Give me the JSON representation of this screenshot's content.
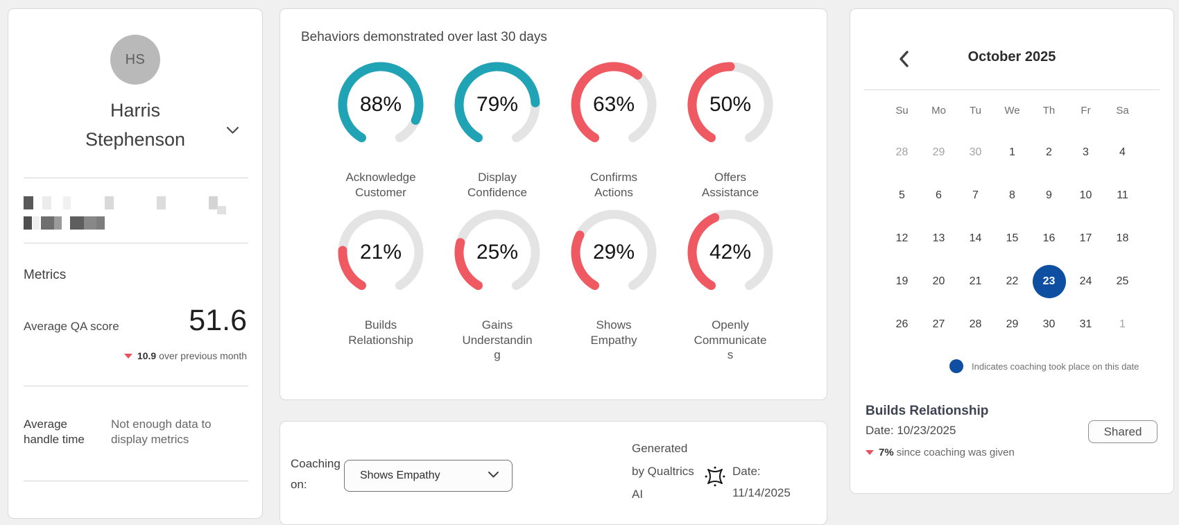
{
  "colors": {
    "teal": "#1fa3b5",
    "red": "#ef5a62",
    "track": "#e4e4e4",
    "blue": "#0e4fa2",
    "delta_red": "#e8505f"
  },
  "profile": {
    "initials": "HS",
    "name": "Harris Stephenson",
    "metrics_title": "Metrics",
    "qa_label": "Average QA score",
    "qa_value": "51.6",
    "qa_delta": "10.9",
    "qa_delta_suffix": "over previous month",
    "aht_label": "Average handle time",
    "aht_value": "Not enough data to display metrics"
  },
  "behaviors": {
    "title": "Behaviors demonstrated over last 30 days",
    "items": [
      {
        "pct": 88,
        "pct_text": "88%",
        "label": "Acknowledge\nCustomer",
        "color": "teal"
      },
      {
        "pct": 79,
        "pct_text": "79%",
        "label": "Display\nConfidence",
        "color": "teal"
      },
      {
        "pct": 63,
        "pct_text": "63%",
        "label": "Confirms\nActions",
        "color": "red"
      },
      {
        "pct": 50,
        "pct_text": "50%",
        "label": "Offers\nAssistance",
        "color": "red"
      },
      {
        "pct": 21,
        "pct_text": "21%",
        "label": "Builds\nRelationship",
        "color": "red"
      },
      {
        "pct": 25,
        "pct_text": "25%",
        "label": "Gains\nUnderstandin\ng",
        "color": "red"
      },
      {
        "pct": 29,
        "pct_text": "29%",
        "label": "Shows\nEmpathy",
        "color": "red"
      },
      {
        "pct": 42,
        "pct_text": "42%",
        "label": "Openly\nCommunicate\ns",
        "color": "red"
      }
    ]
  },
  "chart_data": {
    "type": "donut-gauges",
    "title": "Behaviors demonstrated over last 30 days",
    "categories": [
      "Acknowledge Customer",
      "Display Confidence",
      "Confirms Actions",
      "Offers Assistance",
      "Builds Relationship",
      "Gains Understanding",
      "Shows Empathy",
      "Openly Communicates"
    ],
    "values": [
      88,
      79,
      63,
      50,
      21,
      25,
      29,
      42
    ],
    "colors": [
      "#1fa3b5",
      "#1fa3b5",
      "#ef5a62",
      "#ef5a62",
      "#ef5a62",
      "#ef5a62",
      "#ef5a62",
      "#ef5a62"
    ]
  },
  "coaching": {
    "label": "Coaching on:",
    "select_value": "Shows Empathy",
    "generated_text": "Generated by Qualtrics AI",
    "date_text": "Date: 11/14/2025"
  },
  "calendar": {
    "title": "October 2025",
    "day_headers": [
      "Su",
      "Mo",
      "Tu",
      "We",
      "Th",
      "Fr",
      "Sa"
    ],
    "weeks": [
      [
        {
          "d": 28,
          "m": 1
        },
        {
          "d": 29,
          "m": 1
        },
        {
          "d": 30,
          "m": 1
        },
        {
          "d": 1
        },
        {
          "d": 2
        },
        {
          "d": 3
        },
        {
          "d": 4
        }
      ],
      [
        {
          "d": 5
        },
        {
          "d": 6
        },
        {
          "d": 7
        },
        {
          "d": 8
        },
        {
          "d": 9
        },
        {
          "d": 10
        },
        {
          "d": 11
        }
      ],
      [
        {
          "d": 12
        },
        {
          "d": 13
        },
        {
          "d": 14
        },
        {
          "d": 15
        },
        {
          "d": 16
        },
        {
          "d": 17
        },
        {
          "d": 18
        }
      ],
      [
        {
          "d": 19
        },
        {
          "d": 20
        },
        {
          "d": 21
        },
        {
          "d": 22
        },
        {
          "d": 23,
          "sel": 1
        },
        {
          "d": 24
        },
        {
          "d": 25
        }
      ],
      [
        {
          "d": 26
        },
        {
          "d": 27
        },
        {
          "d": 28
        },
        {
          "d": 29
        },
        {
          "d": 30
        },
        {
          "d": 31
        },
        {
          "d": 1,
          "m": 1
        }
      ]
    ],
    "legend_text": "Indicates coaching took place on this date",
    "detail_title": "Builds Relationship",
    "detail_date": "Date: 10/23/2025",
    "detail_delta": "7%",
    "detail_delta_suffix": "since coaching was given",
    "shared_label": "Shared"
  }
}
